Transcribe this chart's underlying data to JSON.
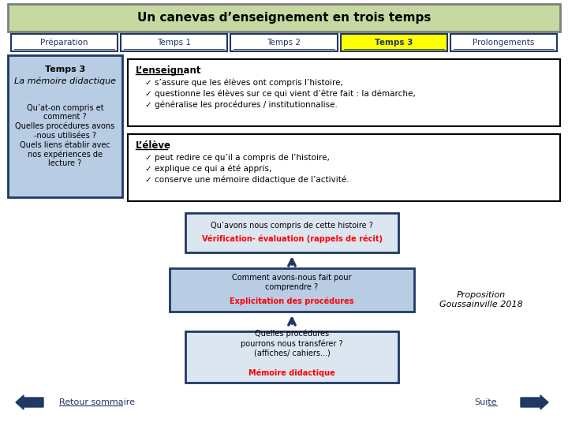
{
  "title": "Un canevas d’enseignement en trois temps",
  "title_bg": "#c6d9a0",
  "title_border": "#7f7f7f",
  "nav_labels": [
    "Préparation",
    "Temps 1",
    "Temps 2",
    "Temps 3",
    "Prolongements"
  ],
  "nav_active": 3,
  "nav_active_bg": "#ffff00",
  "nav_inactive_bg": "#ffffff",
  "nav_border": "#1f3864",
  "nav_text_color": "#1f3864",
  "left_box_bg": "#b8cce4",
  "left_box_border": "#1f3864",
  "left_box_title": "Temps 3",
  "left_box_subtitle": "La mémoire didactique",
  "left_box_text": "Qu’at-on compris et\ncomment ?\nQuelles procédures avons\n-nous utilisées ?\nQuels liens établir avec\nnos expériences de\nlecture ?",
  "enseignant_title": "L’enseignant",
  "enseignant_items": [
    "s’assure que les élèves ont compris l’histoire,",
    "questionne les élèves sur ce qui vient d’être fait : la démarche,",
    "généralise les procédures / institutionnalise."
  ],
  "eleve_title": "L’élève",
  "eleve_items": [
    "peut redire ce qu’il a compris de l’histoire,",
    "explique ce qui a été appris,",
    "conserve une mémoire didactique de l’activité."
  ],
  "flow_box1_text": "Qu’avons nous compris de cette histoire ?",
  "flow_box1_red": "Vérification- évaluation (rappels de récit)",
  "flow_box2_text": "Comment avons-nous fait pour\ncomprendre ?",
  "flow_box2_red": "Explicitation des procédures",
  "flow_box3_text": "Quelles procédures\npourrons nous transférer ?\n(affiches/ cahiers...)",
  "flow_box3_red": "Mémoire didactique",
  "flow_box_bg1": "#dce6f1",
  "flow_box_bg2": "#b8cce4",
  "flow_arrow_color": "#1f3864",
  "proposition_text": "Proposition\nGoussainville 2018",
  "retour_text": "Retour sommaire",
  "suite_text": "Suite",
  "nav_arrow_color": "#1f3864",
  "bg_color": "#ffffff"
}
